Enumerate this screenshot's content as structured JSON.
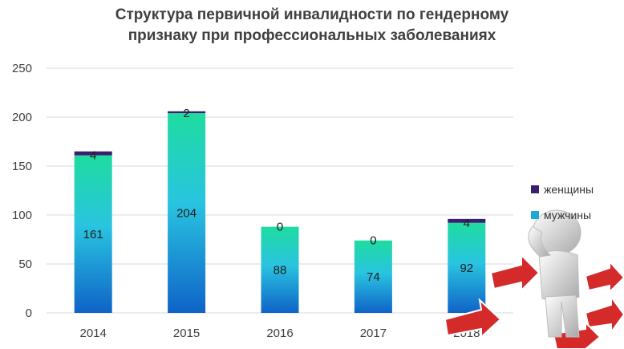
{
  "chart_data": {
    "type": "bar",
    "stacked": true,
    "title_line1": "Структура первичной инвалидности по гендерному",
    "title_line2": "признаку при профессиональных заболеваниях",
    "categories": [
      "2014",
      "2015",
      "2016",
      "2017",
      "2018"
    ],
    "series": [
      {
        "name": "мужчины",
        "values": [
          161,
          204,
          88,
          74,
          92
        ],
        "color": "#1ea8d8"
      },
      {
        "name": "женщины",
        "values": [
          4,
          2,
          0,
          0,
          4
        ],
        "color": "#3a1f6e"
      }
    ],
    "ylim": [
      0,
      250
    ],
    "yticks": [
      0,
      50,
      100,
      150,
      200,
      250
    ],
    "grid": true,
    "legend_position": "right"
  },
  "legend": {
    "items": [
      {
        "label": "женщины",
        "color": "#3a1f6e"
      },
      {
        "label": "мужчины",
        "color": "#1ea8d8"
      }
    ]
  }
}
